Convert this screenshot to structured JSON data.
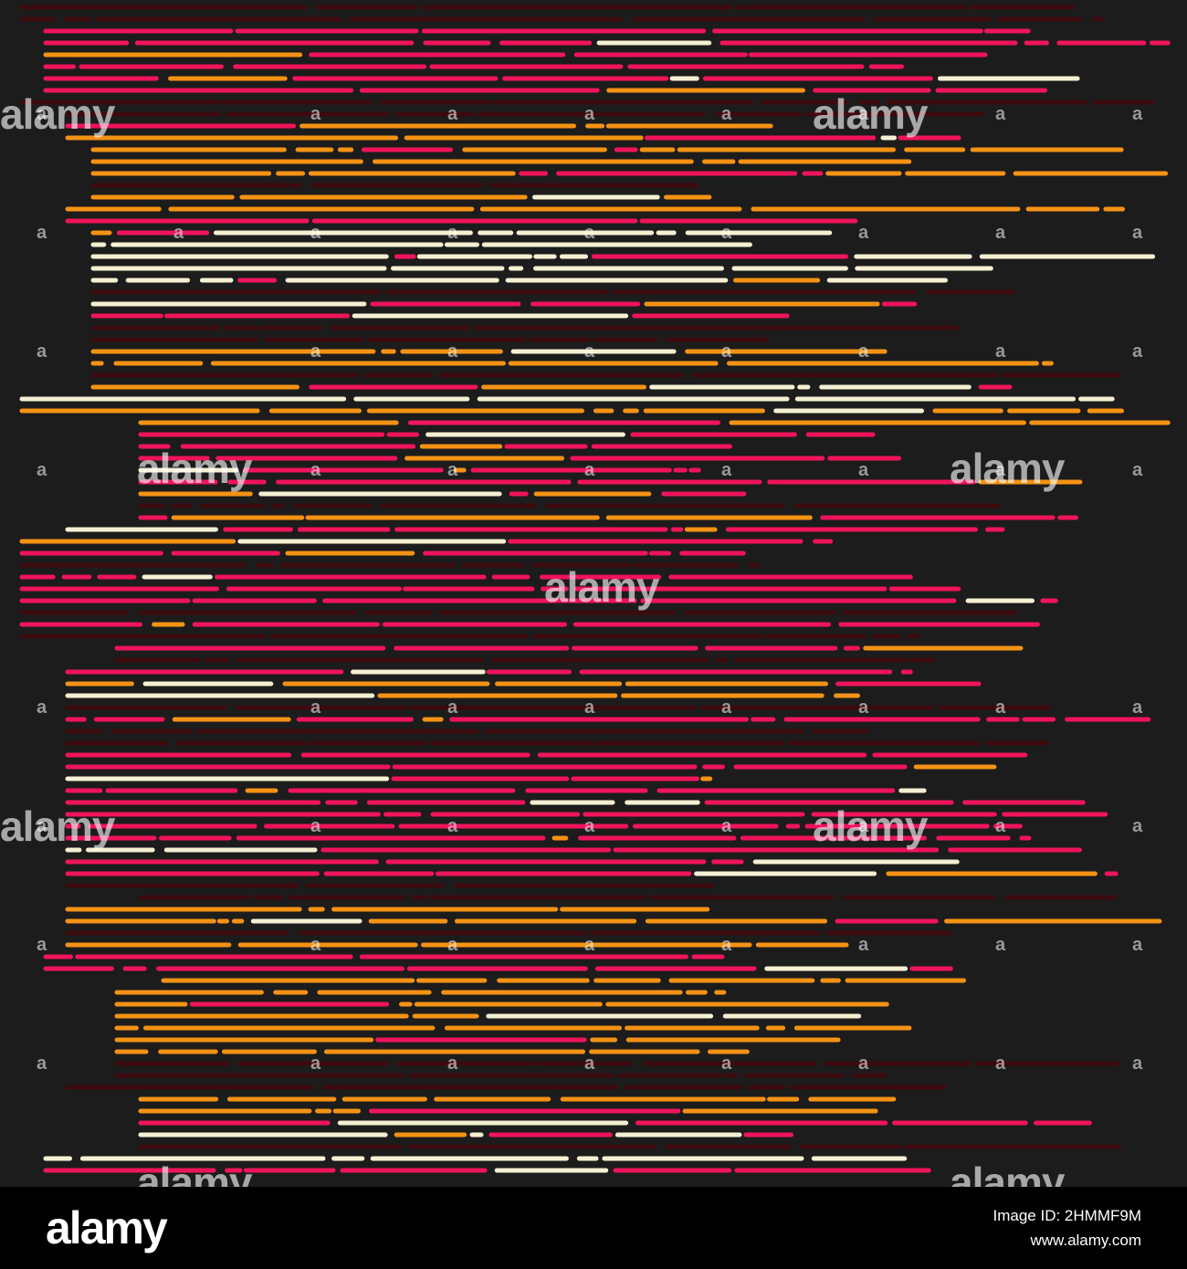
{
  "palette": {
    "background": "#1c1c1c",
    "pink": "#f0145a",
    "orange": "#f59214",
    "cream": "#f5f0d2",
    "maroon": "#3d0a0e"
  },
  "watermark": {
    "logo": "alamy",
    "mark": "a"
  },
  "footer": {
    "logo": "alamy",
    "image_id": "Image ID: 2HMMF9M",
    "url": "www.alamy.com"
  }
}
